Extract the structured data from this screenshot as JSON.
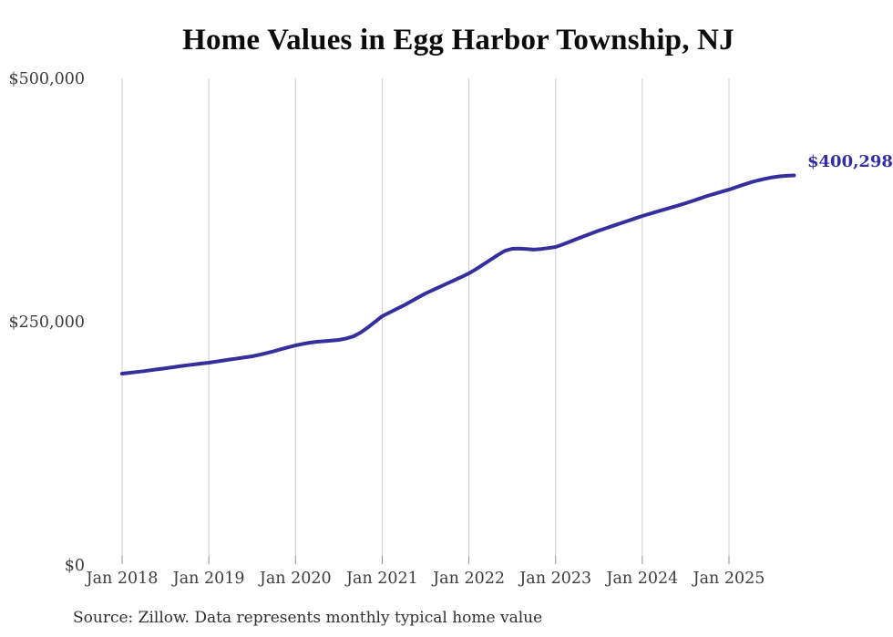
{
  "title": "Home Values in Egg Harbor Township, NJ",
  "source_note": "Source: Zillow. Data represents monthly typical home value",
  "colors": {
    "line": "#342f9d",
    "end_label": "#342f9d",
    "gridline": "#cccccc",
    "tick": "#919191",
    "axis_text": "#3d3d3d",
    "title_text": "#0b0b0b",
    "source_text": "#2f2f2f",
    "background": "#ffffff"
  },
  "chart_data": {
    "type": "line",
    "title": "Home Values in Egg Harbor Township, NJ",
    "xlabel": "",
    "ylabel": "",
    "ylim": [
      0,
      500000
    ],
    "y_ticks": [
      0,
      250000,
      500000
    ],
    "y_tick_labels": [
      "$0",
      "$250,000",
      "$500,000"
    ],
    "x_tick_labels": [
      "Jan 2018",
      "Jan 2019",
      "Jan 2020",
      "Jan 2021",
      "Jan 2022",
      "Jan 2023",
      "Jan 2024",
      "Jan 2025"
    ],
    "grid": "vertical-only",
    "legend_position": "none",
    "frequency": "monthly",
    "start_month": "Jan 2018",
    "end_month": "Oct 2025",
    "end_label": "$400,298",
    "end_value": 400298,
    "series": [
      {
        "name": "Typical home value",
        "values": [
          196600,
          197500,
          198300,
          199200,
          200200,
          201200,
          202200,
          203200,
          204200,
          205200,
          206100,
          207000,
          207900,
          209000,
          210100,
          211200,
          212300,
          213400,
          214400,
          216000,
          217800,
          219700,
          221700,
          223700,
          225700,
          227200,
          228500,
          229400,
          230000,
          230600,
          231300,
          232800,
          234800,
          238800,
          244000,
          249800,
          255600,
          259400,
          263100,
          266800,
          270900,
          275000,
          279000,
          282500,
          285900,
          289300,
          292700,
          296100,
          299600,
          304000,
          308800,
          313700,
          318500,
          322800,
          324900,
          325100,
          324700,
          324100,
          324700,
          325700,
          326800,
          329400,
          332300,
          335200,
          338000,
          340800,
          343600,
          346100,
          348600,
          351100,
          353600,
          356100,
          358600,
          360800,
          363000,
          365100,
          367300,
          369500,
          371700,
          374200,
          376700,
          379200,
          381400,
          383600,
          385700,
          388200,
          390700,
          393200,
          395100,
          396800,
          398300,
          399300,
          399900,
          400298
        ]
      }
    ]
  }
}
